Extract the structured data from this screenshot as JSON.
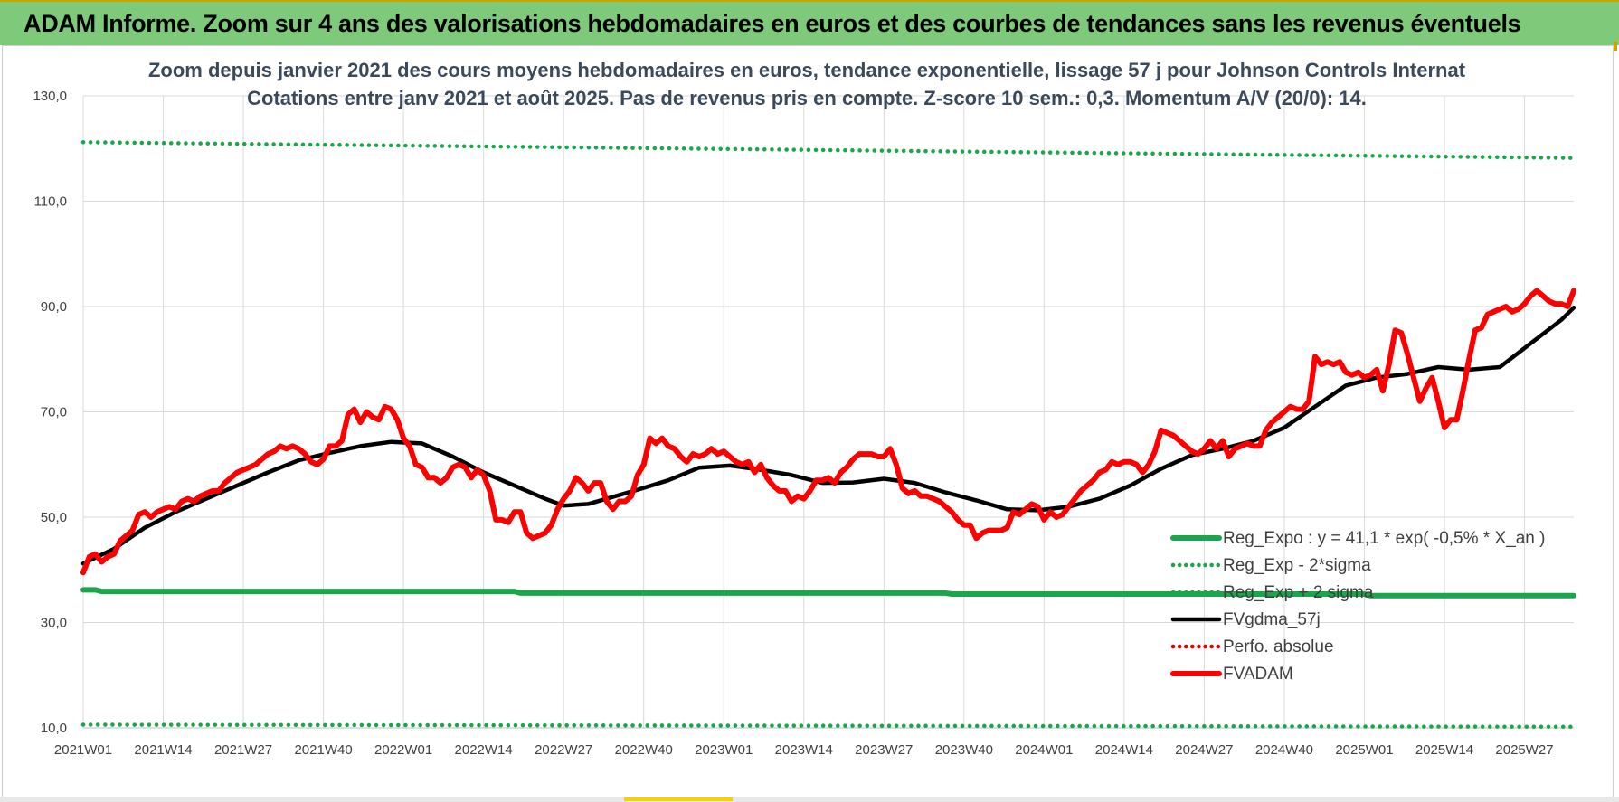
{
  "banner": {
    "title": "ADAM Informe. Zoom sur 4 ans des valorisations hebdomadaires en euros et des courbes de tendances sans les revenus éventuels"
  },
  "colors": {
    "banner": "#7ec97a",
    "reg_expo": "#1aa64a",
    "sigma": "#1aa64a",
    "fvgdma": "#000000",
    "perfo": "#e00000",
    "fvadam": "#ff0000",
    "grid": "#d9d9d9"
  },
  "chart_data": {
    "type": "line",
    "title": "Zoom depuis janvier 2021 des cours moyens hebdomadaires en euros, tendance exponentielle, lissage 57 j pour Johnson Controls Internat",
    "subtitle": "Cotations entre janv 2021 et août 2025.  Pas de revenus pris en compte. Z-score 10 sem.: 0,3. Momentum A/V (20/0): 14.",
    "ylim": [
      10,
      130
    ],
    "yticks": [
      "130,0",
      "110,0",
      "90,0",
      "70,0",
      "50,0",
      "30,0",
      "10,0"
    ],
    "ytick_values": [
      130,
      110,
      90,
      70,
      50,
      30,
      10
    ],
    "xticks": [
      "2021W01",
      "2021W14",
      "2021W27",
      "2021W40",
      "2022W01",
      "2022W14",
      "2022W27",
      "2022W40",
      "2023W01",
      "2023W14",
      "2023W27",
      "2023W40",
      "2024W01",
      "2024W14",
      "2024W27",
      "2024W40",
      "2025W01",
      "2025W14",
      "2025W27"
    ],
    "x_weeks": 243,
    "xtick_index": [
      0,
      13,
      26,
      39,
      52,
      65,
      78,
      91,
      104,
      117,
      130,
      143,
      156,
      169,
      182,
      195,
      208,
      221,
      234
    ],
    "grid": true,
    "legend_position": "bottom-right",
    "series": [
      {
        "name": "Reg_Expo : y = 41,1 * exp( -0,5% *  X_an )",
        "style": "solid-thick",
        "color": "#1aa64a",
        "x": [
          0,
          2,
          3,
          40,
          70,
          71,
          140,
          141,
          208,
          209,
          242
        ],
        "values": [
          36.2,
          36.2,
          35.9,
          35.9,
          35.9,
          35.6,
          35.6,
          35.4,
          35.4,
          35.1,
          35.1
        ]
      },
      {
        "name": "Reg_Exp - 2*sigma",
        "style": "dotted",
        "color": "#1aa64a",
        "x": [
          0,
          242
        ],
        "values": [
          10.6,
          10.2
        ]
      },
      {
        "name": "Reg_Exp + 2 sigma",
        "style": "dotted",
        "color": "#1aa64a",
        "x": [
          0,
          242
        ],
        "values": [
          121.2,
          118.2
        ]
      },
      {
        "name": "FVgdma_57j",
        "style": "solid",
        "color": "#000000",
        "x": [
          0,
          5,
          10,
          15,
          20,
          25,
          30,
          35,
          40,
          45,
          50,
          55,
          60,
          65,
          70,
          75,
          78,
          82,
          85,
          90,
          95,
          100,
          105,
          110,
          115,
          120,
          125,
          130,
          135,
          140,
          145,
          150,
          155,
          160,
          165,
          170,
          175,
          180,
          185,
          190,
          195,
          200,
          205,
          210,
          215,
          220,
          225,
          230,
          235,
          240,
          242
        ],
        "values": [
          41.2,
          44,
          48,
          51,
          53.5,
          56,
          58.5,
          60.8,
          62.2,
          63.5,
          64.3,
          64,
          61.5,
          58.5,
          56,
          53.5,
          52.2,
          52.5,
          53.5,
          55.2,
          57,
          59.4,
          59.8,
          59,
          58,
          56.5,
          56.6,
          57.3,
          56.5,
          54.7,
          53.2,
          51.5,
          51.3,
          52,
          53.5,
          56,
          59.2,
          61.8,
          63,
          64.5,
          67,
          71,
          75,
          76.5,
          77.2,
          78.5,
          78,
          78.5,
          83,
          87.5,
          89.8
        ]
      },
      {
        "name": "Perfo. absolue",
        "style": "dotted",
        "color": "#e00000",
        "x": [],
        "values": []
      },
      {
        "name": "FVADAM",
        "style": "solid-thick",
        "color": "#ff0000",
        "x": [
          0,
          1,
          2,
          3,
          4,
          5,
          6,
          7,
          8,
          9,
          10,
          11,
          12,
          13,
          14,
          15,
          16,
          17,
          18,
          19,
          20,
          21,
          22,
          23,
          24,
          25,
          26,
          27,
          28,
          29,
          30,
          31,
          32,
          33,
          34,
          35,
          36,
          37,
          38,
          39,
          40,
          41,
          42,
          43,
          44,
          45,
          46,
          47,
          48,
          49,
          50,
          51,
          52,
          53,
          54,
          55,
          56,
          57,
          58,
          59,
          60,
          61,
          62,
          63,
          64,
          65,
          66,
          67,
          68,
          69,
          70,
          71,
          72,
          73,
          74,
          75,
          76,
          77,
          78,
          79,
          80,
          81,
          82,
          83,
          84,
          85,
          86,
          87,
          88,
          89,
          90,
          91,
          92,
          93,
          94,
          95,
          96,
          97,
          98,
          99,
          100,
          101,
          102,
          103,
          104,
          105,
          106,
          107,
          108,
          109,
          110,
          111,
          112,
          113,
          114,
          115,
          116,
          117,
          118,
          119,
          120,
          121,
          122,
          123,
          124,
          125,
          126,
          127,
          128,
          129,
          130,
          131,
          132,
          133,
          134,
          135,
          136,
          137,
          138,
          139,
          140,
          141,
          142,
          143,
          144,
          145,
          146,
          147,
          148,
          149,
          150,
          151,
          152,
          153,
          154,
          155,
          156,
          157,
          158,
          159,
          160,
          161,
          162,
          163,
          164,
          165,
          166,
          167,
          168,
          169,
          170,
          171,
          172,
          173,
          174,
          175,
          176,
          177,
          178,
          179,
          180,
          181,
          182,
          183,
          184,
          185,
          186,
          187,
          188,
          189,
          190,
          191,
          192,
          193,
          194,
          195,
          196,
          197,
          198,
          199,
          200,
          201,
          202,
          203,
          204,
          205,
          206,
          207,
          208,
          209,
          210,
          211,
          212,
          213,
          214,
          215,
          216,
          217,
          218,
          219,
          220,
          221,
          222,
          223,
          224,
          225,
          226,
          227,
          228,
          229,
          230,
          231,
          232,
          233,
          234,
          235,
          236,
          237,
          238,
          239,
          240,
          241,
          242
        ],
        "values": [
          39.5,
          42.5,
          43,
          41.5,
          42.5,
          43,
          45.5,
          46.5,
          47.5,
          50.5,
          51,
          50,
          51,
          51.5,
          52,
          51.5,
          53,
          53.5,
          53,
          54,
          54.5,
          55,
          55,
          56.5,
          57.5,
          58.5,
          59,
          59.5,
          60,
          61,
          62,
          62.5,
          63.5,
          63,
          63.5,
          63,
          62,
          60.5,
          60,
          61,
          63.5,
          63.5,
          64.5,
          69.5,
          70.5,
          68,
          70,
          69,
          68.5,
          71,
          70.5,
          68.5,
          65,
          63.5,
          60,
          59.5,
          57.5,
          57.5,
          56.5,
          57.5,
          59.5,
          60,
          59.5,
          57.5,
          59,
          58,
          55,
          49.5,
          49.5,
          49,
          51,
          51,
          47,
          46,
          46.5,
          47,
          48.5,
          51.5,
          53.5,
          55,
          57.5,
          56.5,
          55,
          56.5,
          56.5,
          53,
          51.5,
          53,
          53,
          54,
          58,
          60,
          65,
          64,
          65,
          63.5,
          63,
          61.5,
          60.5,
          62,
          61.5,
          62,
          63,
          62,
          62.5,
          61.5,
          60.5,
          60,
          60.5,
          58.5,
          60,
          57.5,
          56,
          55,
          55,
          53,
          54,
          53.5,
          55,
          57,
          57,
          57.5,
          56.5,
          58.5,
          59.5,
          61,
          62,
          62,
          62,
          61.5,
          61.5,
          63,
          60,
          55.5,
          54.5,
          55,
          54,
          54,
          53.5,
          53,
          52,
          51,
          49.5,
          48.5,
          48.5,
          46,
          47,
          47.5,
          47.5,
          47.5,
          48,
          51,
          50.5,
          51.5,
          52.5,
          52,
          49.5,
          51,
          50,
          50.5,
          52,
          53.5,
          55,
          56,
          57,
          58.5,
          59,
          60.5,
          60,
          60.5,
          60.5,
          60,
          58.5,
          60,
          62.5,
          66.5,
          66,
          65.5,
          64.5,
          63.5,
          62.5,
          62,
          63,
          64.5,
          63,
          64.5,
          61.5,
          63,
          63.5,
          64,
          63.5,
          63.5,
          66.5,
          68,
          69,
          70,
          71,
          70.5,
          70.5,
          72,
          80.5,
          79,
          79.5,
          79,
          79.5,
          77.5,
          77,
          77.5,
          76.5,
          77,
          78,
          74,
          79,
          85.5,
          85,
          81,
          76.5,
          72,
          74.5,
          76.5,
          72,
          67,
          68.5,
          68.5,
          74,
          80,
          85.5,
          86,
          88.5,
          89,
          89.5,
          90,
          89,
          89.5,
          90.5,
          92,
          93,
          92,
          91,
          90.5,
          90.5,
          90,
          93
        ]
      }
    ]
  }
}
